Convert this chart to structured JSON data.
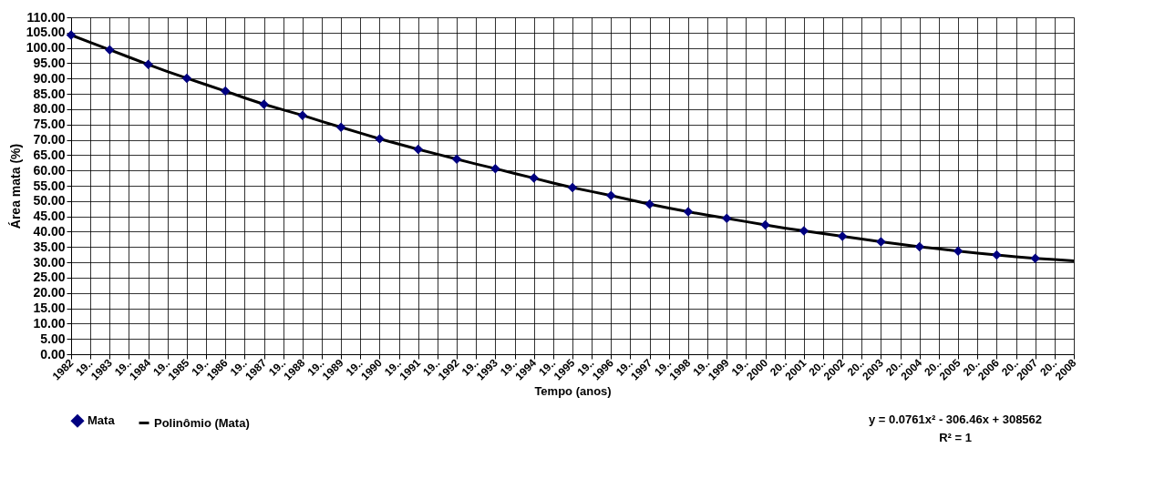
{
  "chart_data": {
    "type": "line",
    "xlabel": "Tempo (anos)",
    "ylabel": "Área mata (%)",
    "categories": [
      "1982",
      "19..",
      "1983",
      "19..",
      "1984",
      "19..",
      "1985",
      "19..",
      "1986",
      "19..",
      "1987",
      "19..",
      "1988",
      "19..",
      "1989",
      "19..",
      "1990",
      "19..",
      "1991",
      "19..",
      "1992",
      "19..",
      "1993",
      "19..",
      "1994",
      "19..",
      "1995",
      "19..",
      "1996",
      "19..",
      "1997",
      "19..",
      "1998",
      "19..",
      "1999",
      "19..",
      "2000",
      "20..",
      "2001",
      "20..",
      "2002",
      "20..",
      "2003",
      "20..",
      "2004",
      "20..",
      "2005",
      "20..",
      "2006",
      "20..",
      "2007",
      "20..",
      "2008"
    ],
    "series": [
      {
        "name": "Mata",
        "type": "scatter",
        "marker": "diamond",
        "color": "#000080",
        "values": [
          104.2,
          null,
          99.4,
          null,
          94.6,
          null,
          90.1,
          null,
          85.9,
          null,
          81.6,
          null,
          78.0,
          null,
          74.1,
          null,
          70.3,
          null,
          66.9,
          null,
          63.7,
          null,
          60.6,
          null,
          57.5,
          null,
          54.4,
          null,
          51.8,
          null,
          49.0,
          null,
          46.5,
          null,
          44.4,
          null,
          42.2,
          null,
          40.3,
          null,
          38.5,
          null,
          36.7,
          null,
          35.1,
          null,
          33.7,
          null,
          32.4,
          null,
          31.3,
          null,
          null
        ]
      },
      {
        "name": "Polinômio (Mata)",
        "line_style": "solid",
        "color": "#000000",
        "values": [
          104.2,
          101.8,
          99.4,
          97.0,
          94.6,
          92.3,
          90.1,
          88.0,
          85.9,
          83.7,
          81.6,
          79.8,
          78.0,
          76.0,
          74.1,
          72.2,
          70.3,
          68.6,
          66.9,
          65.3,
          63.7,
          62.1,
          60.6,
          59.0,
          57.5,
          55.9,
          54.4,
          53.1,
          51.8,
          50.4,
          49.0,
          47.7,
          46.5,
          45.4,
          44.4,
          43.3,
          42.2,
          41.2,
          40.3,
          39.4,
          38.5,
          37.6,
          36.7,
          35.9,
          35.1,
          34.4,
          33.7,
          33.0,
          32.4,
          31.8,
          31.3,
          30.9,
          30.5
        ]
      }
    ],
    "ylim": [
      0,
      110
    ],
    "yticks": [
      {
        "value": 0,
        "label": "0.00"
      },
      {
        "value": 5,
        "label": "5.00"
      },
      {
        "value": 10,
        "label": "10.00"
      },
      {
        "value": 15,
        "label": "15.00"
      },
      {
        "value": 20,
        "label": "20.00"
      },
      {
        "value": 25,
        "label": "25.00"
      },
      {
        "value": 30,
        "label": "30.00"
      },
      {
        "value": 35,
        "label": "35.00"
      },
      {
        "value": 40,
        "label": "40.00"
      },
      {
        "value": 45,
        "label": "45.00"
      },
      {
        "value": 50,
        "label": "50.00"
      },
      {
        "value": 55,
        "label": "55.00"
      },
      {
        "value": 60,
        "label": "60.00"
      },
      {
        "value": 65,
        "label": "65.00"
      },
      {
        "value": 70,
        "label": "70.00"
      },
      {
        "value": 75,
        "label": "75.00"
      },
      {
        "value": 80,
        "label": "80.00"
      },
      {
        "value": 85,
        "label": "85.00"
      },
      {
        "value": 90,
        "label": "90.00"
      },
      {
        "value": 95,
        "label": "95.00"
      },
      {
        "value": 100,
        "label": "100.00"
      },
      {
        "value": 105,
        "label": "105.00"
      },
      {
        "value": 110,
        "label": "110.00"
      }
    ],
    "grid": true,
    "legend": "bottom left",
    "annotations": [
      "y = 0.0761x² - 306.46x + 308562",
      "R² = 1"
    ]
  }
}
